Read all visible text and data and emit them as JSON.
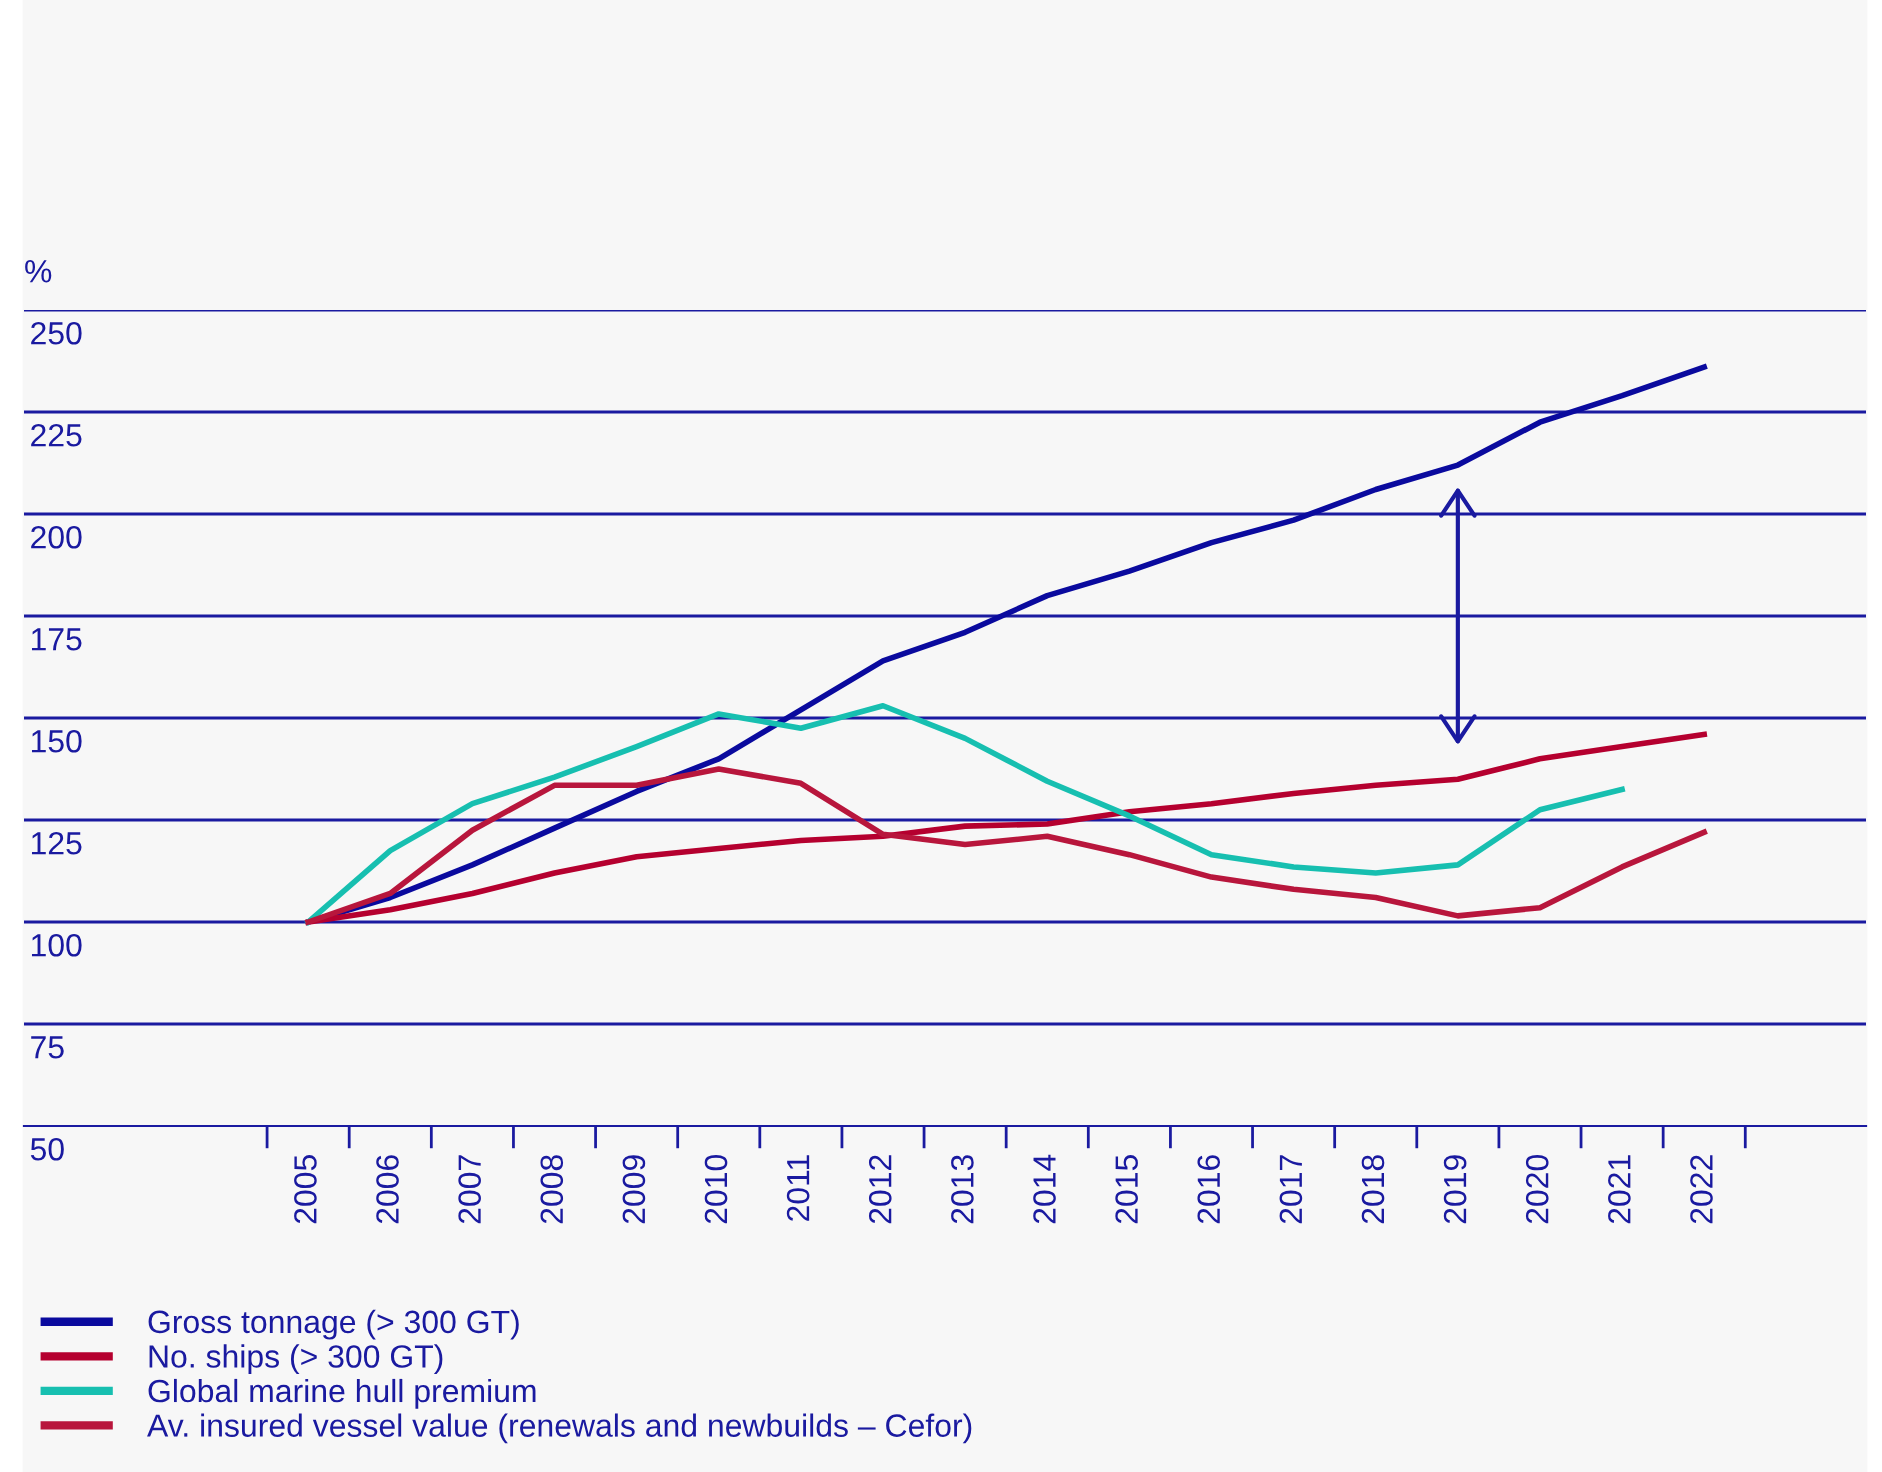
{
  "chart_data": {
    "type": "line",
    "ylabel": "%",
    "categories": [
      "2005",
      "2006",
      "2007",
      "2008",
      "2009",
      "2010",
      "2011",
      "2012",
      "2013",
      "2014",
      "2015",
      "2016",
      "2017",
      "2018",
      "2019",
      "2020",
      "2021",
      "2022"
    ],
    "series": [
      {
        "name": "Gross tonnage (> 300 GT)",
        "color": "#0a0a9e",
        "values": [
          100,
          106,
          114,
          123,
          132,
          140,
          152,
          164,
          171,
          180,
          186,
          193,
          198.5,
          206,
          212,
          222.5,
          229,
          236
        ]
      },
      {
        "name": "No. ships (> 300 GT)",
        "color": "#b5002f",
        "values": [
          100,
          103,
          107,
          112,
          116,
          118,
          120,
          121,
          123.5,
          124,
          127,
          129,
          131.5,
          133.5,
          135,
          140,
          143,
          146
        ]
      },
      {
        "name": "Global marine hull premium",
        "color": "#17bfb0",
        "values": [
          100,
          117.5,
          129,
          135.5,
          143,
          151,
          147.5,
          153,
          145,
          134.5,
          126,
          116.5,
          113.5,
          112,
          114,
          127.5,
          132.5,
          null
        ]
      },
      {
        "name": "Av. insured vessel value (renewals and newbuilds – Cefor)",
        "color": "#b8163c",
        "values": [
          100,
          107,
          122.5,
          133.5,
          133.5,
          137.5,
          134,
          121.5,
          119,
          121,
          116.5,
          111,
          108,
          106,
          101.5,
          103.5,
          113.5,
          122
        ]
      }
    ],
    "ylim": [
      50,
      250
    ],
    "yticks": [
      50,
      75,
      100,
      125,
      150,
      175,
      200,
      225,
      250
    ],
    "grid": "y",
    "legend": "bottom",
    "line_style": "solid",
    "marker": "none"
  }
}
